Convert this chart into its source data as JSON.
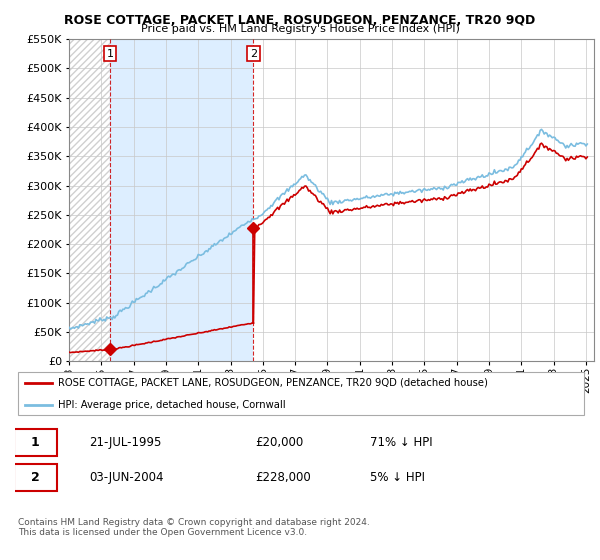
{
  "title": "ROSE COTTAGE, PACKET LANE, ROSUDGEON, PENZANCE, TR20 9QD",
  "subtitle": "Price paid vs. HM Land Registry's House Price Index (HPI)",
  "legend_line1": "ROSE COTTAGE, PACKET LANE, ROSUDGEON, PENZANCE, TR20 9QD (detached house)",
  "legend_line2": "HPI: Average price, detached house, Cornwall",
  "sale1_date": "21-JUL-1995",
  "sale1_price": 20000,
  "sale1_hpi": "71% ↓ HPI",
  "sale1_label": "1",
  "sale2_date": "03-JUN-2004",
  "sale2_price": 228000,
  "sale2_hpi": "5% ↓ HPI",
  "sale2_label": "2",
  "footer": "Contains HM Land Registry data © Crown copyright and database right 2024.\nThis data is licensed under the Open Government Licence v3.0.",
  "hpi_color": "#7bbde0",
  "price_color": "#cc0000",
  "dashed_color": "#cc0000",
  "shade_color": "#ddeeff",
  "hatch_color": "#c8c8c8",
  "ylim": [
    0,
    550000
  ],
  "yticks": [
    0,
    50000,
    100000,
    150000,
    200000,
    250000,
    300000,
    350000,
    400000,
    450000,
    500000,
    550000
  ],
  "xlim_start": 1993.0,
  "xlim_end": 2025.5,
  "sale1_x": 1995.55,
  "sale2_x": 2004.42
}
